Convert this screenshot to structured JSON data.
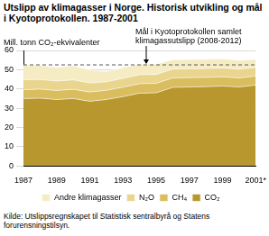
{
  "chart_data": {
    "type": "area",
    "title": "Utslipp av klimagasser i Norge. Historisk utvikling og mål i Kyotoprotokollen. 1987-2001",
    "y_label": "Mill. tonn CO₂-ekvivalenter",
    "source": "Kilde: Utslippsregnskapet til Statistisk sentralbyrå og Statens forurensningstilsyn.",
    "categories": [
      "1987",
      null,
      "1989",
      null,
      "1991",
      null,
      "1993",
      null,
      "1995",
      null,
      "1997",
      null,
      "1999",
      null,
      "2001*"
    ],
    "series": [
      {
        "name": "CO₂",
        "color": "#b8972e",
        "values": [
          35.0,
          35.2,
          34.5,
          35.0,
          33.6,
          34.5,
          36.0,
          37.8,
          38.0,
          40.8,
          41.0,
          41.2,
          41.5,
          41.0,
          42.0
        ]
      },
      {
        "name": "CH₄",
        "color": "#d9bd5e",
        "values": [
          4.6,
          4.7,
          4.7,
          4.8,
          4.8,
          4.8,
          4.9,
          4.9,
          4.9,
          4.9,
          4.9,
          4.8,
          4.8,
          4.7,
          4.7
        ]
      },
      {
        "name": "N₂O",
        "color": "#ead58f",
        "values": [
          5.2,
          5.0,
          4.9,
          4.9,
          4.7,
          4.4,
          4.6,
          4.7,
          4.6,
          4.6,
          4.6,
          4.6,
          4.6,
          4.6,
          4.5
        ]
      },
      {
        "name": "Andre klimagasser",
        "color": "#f6ecc4",
        "values": [
          7.6,
          7.4,
          7.0,
          7.4,
          6.7,
          5.4,
          5.6,
          5.5,
          5.4,
          4.9,
          4.8,
          4.8,
          4.8,
          4.6,
          4.2
        ]
      }
    ],
    "stacked": true,
    "ylim": [
      0,
      60
    ],
    "yticks": [
      0,
      10,
      20,
      30,
      40,
      50,
      60
    ],
    "grid": true,
    "legend": "bottom",
    "annotations": [
      {
        "text": [
          "Mål i Kyotoprotokollen samlet",
          "klimagassutslipp (2008-2012)"
        ],
        "y": 52.5,
        "line_style": "dashed"
      }
    ]
  }
}
